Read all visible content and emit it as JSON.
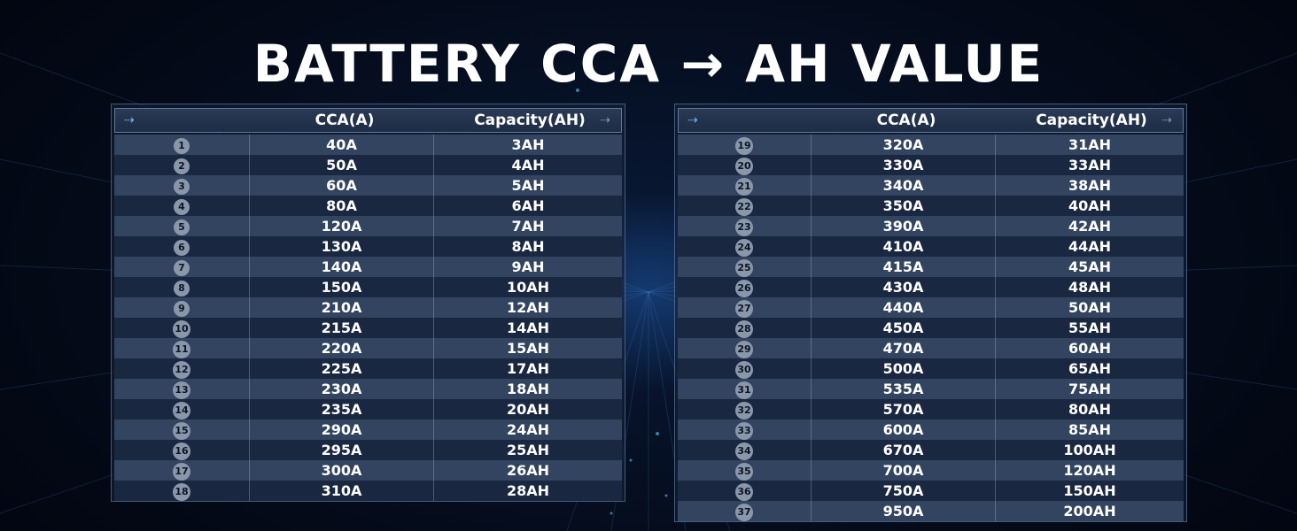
{
  "title": "BATTERY CCA → AH VALUE",
  "header": {
    "arrow_left": "⇢",
    "arrow_right": "⇢",
    "cca_label": "CCA(A)",
    "capacity_label": "Capacity(AH)"
  },
  "left_table": [
    {
      "n": "1",
      "cca": "40A",
      "ah": "3AH"
    },
    {
      "n": "2",
      "cca": "50A",
      "ah": "4AH"
    },
    {
      "n": "3",
      "cca": "60A",
      "ah": "5AH"
    },
    {
      "n": "4",
      "cca": "80A",
      "ah": "6AH"
    },
    {
      "n": "5",
      "cca": "120A",
      "ah": "7AH"
    },
    {
      "n": "6",
      "cca": "130A",
      "ah": "8AH"
    },
    {
      "n": "7",
      "cca": "140A",
      "ah": "9AH"
    },
    {
      "n": "8",
      "cca": "150A",
      "ah": "10AH"
    },
    {
      "n": "9",
      "cca": "210A",
      "ah": "12AH"
    },
    {
      "n": "10",
      "cca": "215A",
      "ah": "14AH"
    },
    {
      "n": "11",
      "cca": "220A",
      "ah": "15AH"
    },
    {
      "n": "12",
      "cca": "225A",
      "ah": "17AH"
    },
    {
      "n": "13",
      "cca": "230A",
      "ah": "18AH"
    },
    {
      "n": "14",
      "cca": "235A",
      "ah": "20AH"
    },
    {
      "n": "15",
      "cca": "290A",
      "ah": "24AH"
    },
    {
      "n": "16",
      "cca": "295A",
      "ah": "25AH"
    },
    {
      "n": "17",
      "cca": "300A",
      "ah": "26AH"
    },
    {
      "n": "18",
      "cca": "310A",
      "ah": "28AH"
    }
  ],
  "right_table": [
    {
      "n": "19",
      "cca": "320A",
      "ah": "31AH"
    },
    {
      "n": "20",
      "cca": "330A",
      "ah": "33AH"
    },
    {
      "n": "21",
      "cca": "340A",
      "ah": "38AH"
    },
    {
      "n": "22",
      "cca": "350A",
      "ah": "40AH"
    },
    {
      "n": "23",
      "cca": "390A",
      "ah": "42AH"
    },
    {
      "n": "24",
      "cca": "410A",
      "ah": "44AH"
    },
    {
      "n": "25",
      "cca": "415A",
      "ah": "45AH"
    },
    {
      "n": "26",
      "cca": "430A",
      "ah": "48AH"
    },
    {
      "n": "27",
      "cca": "440A",
      "ah": "50AH"
    },
    {
      "n": "28",
      "cca": "450A",
      "ah": "55AH"
    },
    {
      "n": "29",
      "cca": "470A",
      "ah": "60AH"
    },
    {
      "n": "30",
      "cca": "500A",
      "ah": "65AH"
    },
    {
      "n": "31",
      "cca": "535A",
      "ah": "75AH"
    },
    {
      "n": "32",
      "cca": "570A",
      "ah": "80AH"
    },
    {
      "n": "33",
      "cca": "600A",
      "ah": "85AH"
    },
    {
      "n": "34",
      "cca": "670A",
      "ah": "100AH"
    },
    {
      "n": "35",
      "cca": "700A",
      "ah": "120AH"
    },
    {
      "n": "36",
      "cca": "750A",
      "ah": "150AH"
    },
    {
      "n": "37",
      "cca": "950A",
      "ah": "200AH"
    }
  ],
  "colors": {
    "accent": "#5fb6e8",
    "row_light": "#32445f",
    "row_dark": "#1a2740",
    "background": "#040a18"
  }
}
